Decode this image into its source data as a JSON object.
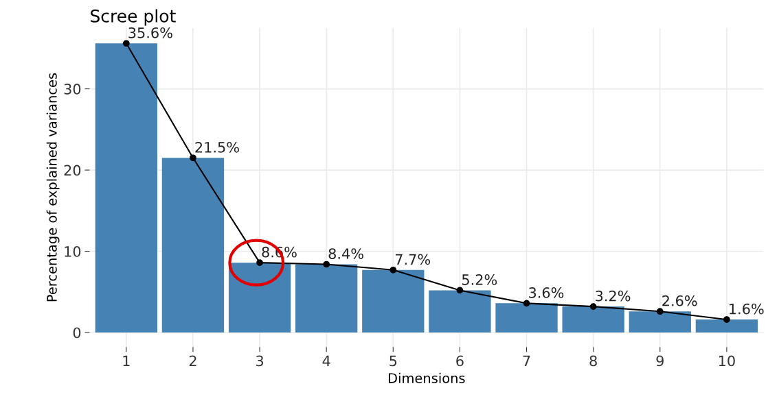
{
  "chart_data": {
    "type": "bar",
    "title": "Scree plot",
    "xlabel": "Dimensions",
    "ylabel": "Percentage of explained variances",
    "categories": [
      "1",
      "2",
      "3",
      "4",
      "5",
      "6",
      "7",
      "8",
      "9",
      "10"
    ],
    "ylim": [
      -1.8,
      37.5
    ],
    "yticks": [
      0,
      10,
      20,
      30
    ],
    "grid": true,
    "series": [
      {
        "color": "#4682b4",
        "values": [
          35.6,
          21.5,
          8.6,
          8.4,
          7.7,
          5.2,
          3.6,
          3.2,
          2.6,
          1.6
        ]
      },
      {
        "type": "line",
        "color": "#000000",
        "marker": "circle",
        "line_style": "solid",
        "values": [
          35.6,
          21.5,
          8.6,
          8.4,
          7.7,
          5.2,
          3.6,
          3.2,
          2.6,
          1.6
        ],
        "value_labels": [
          "35.6%",
          "21.5%",
          "8.6%",
          "8.4%",
          "7.7%",
          "5.2%",
          "3.6%",
          "3.2%",
          "2.6%",
          "1.6%"
        ]
      }
    ]
  }
}
